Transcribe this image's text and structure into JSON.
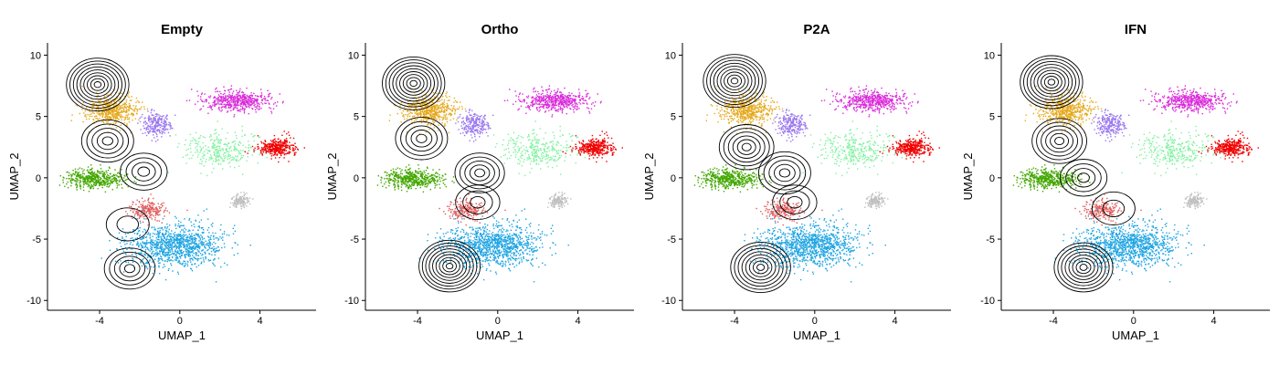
{
  "chart_data": [
    {
      "type": "scatter",
      "title": "Empty",
      "xlabel": "UMAP_1",
      "ylabel": "UMAP_2",
      "xlim": [
        -6.6,
        6.8
      ],
      "ylim": [
        -10.8,
        11
      ],
      "xticks": [
        -4,
        0,
        4
      ],
      "yticks": [
        -10,
        -5,
        0,
        5,
        10
      ],
      "contours": [
        {
          "cx": -4.1,
          "cy": 7.6,
          "weight": 1.0
        },
        {
          "cx": -3.6,
          "cy": 3.0,
          "weight": 0.6
        },
        {
          "cx": -1.8,
          "cy": 0.5,
          "weight": 0.4
        },
        {
          "cx": -2.5,
          "cy": -7.4,
          "weight": 0.55
        },
        {
          "cx": -2.6,
          "cy": -3.8,
          "weight": 0.25
        }
      ]
    },
    {
      "type": "scatter",
      "title": "Ortho",
      "xlabel": "UMAP_1",
      "ylabel": "UMAP_2",
      "xlim": [
        -6.6,
        6.8
      ],
      "ylim": [
        -10.8,
        11
      ],
      "xticks": [
        -4,
        0,
        4
      ],
      "yticks": [
        -10,
        -5,
        0,
        5,
        10
      ],
      "contours": [
        {
          "cx": -4.2,
          "cy": 7.7,
          "weight": 1.0
        },
        {
          "cx": -3.8,
          "cy": 3.2,
          "weight": 0.6
        },
        {
          "cx": -0.9,
          "cy": 0.4,
          "weight": 0.5
        },
        {
          "cx": -2.4,
          "cy": -7.2,
          "weight": 0.95
        },
        {
          "cx": -1.0,
          "cy": -2.0,
          "weight": 0.3
        }
      ]
    },
    {
      "type": "scatter",
      "title": "P2A",
      "xlabel": "UMAP_1",
      "ylabel": "UMAP_2",
      "xlim": [
        -6.6,
        6.8
      ],
      "ylim": [
        -10.8,
        11
      ],
      "xticks": [
        -4,
        0,
        4
      ],
      "yticks": [
        -10,
        -5,
        0,
        5,
        10
      ],
      "contours": [
        {
          "cx": -4.0,
          "cy": 7.9,
          "weight": 1.0
        },
        {
          "cx": -3.4,
          "cy": 2.5,
          "weight": 0.7
        },
        {
          "cx": -1.5,
          "cy": 0.4,
          "weight": 0.6
        },
        {
          "cx": -2.7,
          "cy": -7.3,
          "weight": 0.9
        },
        {
          "cx": -1.0,
          "cy": -2.0,
          "weight": 0.3
        }
      ]
    },
    {
      "type": "scatter",
      "title": "IFN",
      "xlabel": "UMAP_1",
      "ylabel": "UMAP_2",
      "xlim": [
        -6.6,
        6.8
      ],
      "ylim": [
        -10.8,
        11
      ],
      "xticks": [
        -4,
        0,
        4
      ],
      "yticks": [
        -10,
        -5,
        0,
        5,
        10
      ],
      "contours": [
        {
          "cx": -4.1,
          "cy": 7.8,
          "weight": 1.0
        },
        {
          "cx": -3.7,
          "cy": 3.0,
          "weight": 0.7
        },
        {
          "cx": -2.5,
          "cy": 0.0,
          "weight": 0.4
        },
        {
          "cx": -2.5,
          "cy": -7.3,
          "weight": 0.85
        },
        {
          "cx": -1.0,
          "cy": -2.5,
          "weight": 0.25
        }
      ]
    }
  ],
  "clusters": [
    {
      "color": "#E5A91C",
      "cx": -3.4,
      "cy": 5.5,
      "sx": 1.15,
      "sy": 1.15,
      "n": 520
    },
    {
      "color": "#D92BD9",
      "cx": 2.8,
      "cy": 6.3,
      "sx": 1.5,
      "sy": 0.7,
      "n": 520
    },
    {
      "color": "#9B78F0",
      "cx": -1.2,
      "cy": 4.4,
      "sx": 0.65,
      "sy": 0.9,
      "n": 240
    },
    {
      "color": "#7FF29F",
      "cx": 2.0,
      "cy": 2.3,
      "sx": 1.6,
      "sy": 1.3,
      "n": 320
    },
    {
      "color": "#F00000",
      "cx": 4.8,
      "cy": 2.5,
      "sx": 0.85,
      "sy": 0.65,
      "n": 340
    },
    {
      "color": "#43A700",
      "cx": -4.3,
      "cy": 0.0,
      "sx": 1.3,
      "sy": 0.75,
      "n": 480
    },
    {
      "color": "#E05A5A",
      "cx": -1.6,
      "cy": -2.6,
      "sx": 0.85,
      "sy": 0.75,
      "n": 220
    },
    {
      "color": "#BDBDBD",
      "cx": 3.0,
      "cy": -1.8,
      "sx": 0.4,
      "sy": 0.5,
      "n": 120
    },
    {
      "color": "#1EA4E2",
      "cx": -0.3,
      "cy": -5.5,
      "sx": 2.2,
      "sy": 1.6,
      "n": 1100
    }
  ]
}
